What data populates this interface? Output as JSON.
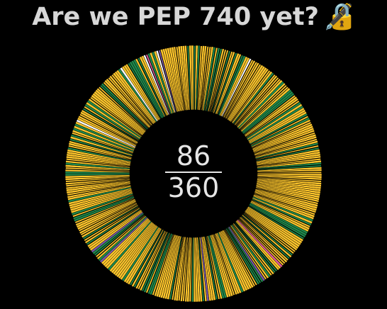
{
  "header": {
    "title": "Are we PEP 740 yet?",
    "lock_glyph": "🔏",
    "lock_icon": "locked-with-pen-icon"
  },
  "progress": {
    "count": "86",
    "total": "360",
    "fraction": 0.2389
  },
  "colors": {
    "background": "#000000",
    "title_text": "#d7d7d7",
    "center_text": "#e6e6e6",
    "wedge_no_attestations": "#FFC72C",
    "wedge_has_attestations": "#1F8A4C",
    "wedge_separator": "#000000",
    "wedge_rare_accents": [
      "#FFFFFF",
      "#E05A9B",
      "#7B5AA6"
    ]
  }
}
